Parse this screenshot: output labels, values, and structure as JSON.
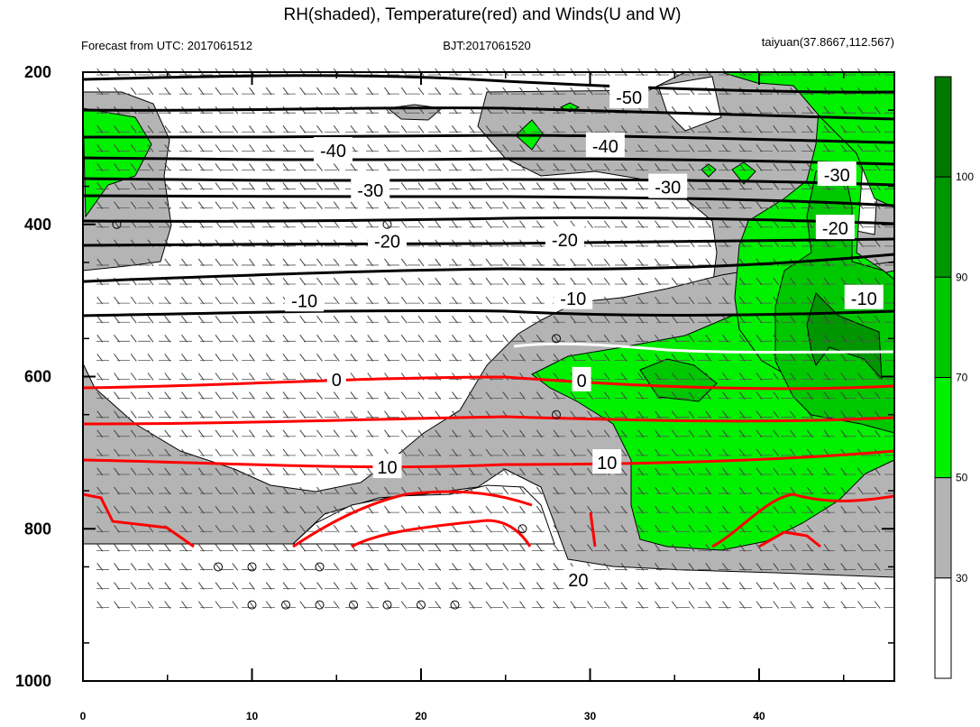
{
  "chart_data": {
    "type": "contour",
    "title": "RH(shaded), Temperature(red) and Winds(U and W)",
    "subtitle_left": "Forecast from UTC: 2017061512",
    "subtitle_center": "BJT:2017061520",
    "subtitle_right": "taiyuan(37.8667,112.567)",
    "x": {
      "range": [
        0,
        48
      ],
      "ticks": [
        "0",
        "10",
        "20",
        "30",
        "40"
      ],
      "tick_values": [
        0,
        10,
        20,
        30,
        40
      ]
    },
    "y": {
      "range": [
        200,
        1000
      ],
      "inverted": true,
      "ticks": [
        "200",
        "400",
        "600",
        "800",
        "1000"
      ],
      "tick_values": [
        200,
        400,
        600,
        800,
        1000
      ]
    },
    "colorbar": {
      "levels": [
        "30",
        "50",
        "70",
        "90",
        "100"
      ],
      "level_values": [
        30,
        50,
        70,
        90,
        100
      ],
      "colors": [
        "#ffffff",
        "#b4b4b4",
        "#00f000",
        "#00c800",
        "#009600",
        "#007800"
      ]
    },
    "contour_labels": [
      {
        "text": "-50",
        "x": 32.3,
        "y": 232
      },
      {
        "text": "-40",
        "x": 14.8,
        "y": 302
      },
      {
        "text": "-40",
        "x": 30.9,
        "y": 296
      },
      {
        "text": "-30",
        "x": 17.0,
        "y": 354
      },
      {
        "text": "-30",
        "x": 34.6,
        "y": 350
      },
      {
        "text": "-30",
        "x": 44.6,
        "y": 334
      },
      {
        "text": "-20",
        "x": 18.0,
        "y": 421
      },
      {
        "text": "-20",
        "x": 28.5,
        "y": 419
      },
      {
        "text": "-20",
        "x": 44.5,
        "y": 404
      },
      {
        "text": "-10",
        "x": 13.1,
        "y": 499
      },
      {
        "text": "-10",
        "x": 29.0,
        "y": 496
      },
      {
        "text": "-10",
        "x": 46.2,
        "y": 496
      },
      {
        "text": "0",
        "x": 15.0,
        "y": 603
      },
      {
        "text": "0",
        "x": 29.5,
        "y": 604
      },
      {
        "text": "10",
        "x": 18.0,
        "y": 718
      },
      {
        "text": "10",
        "x": 31.0,
        "y": 712
      },
      {
        "text": "20",
        "x": 29.3,
        "y": 866
      }
    ]
  }
}
